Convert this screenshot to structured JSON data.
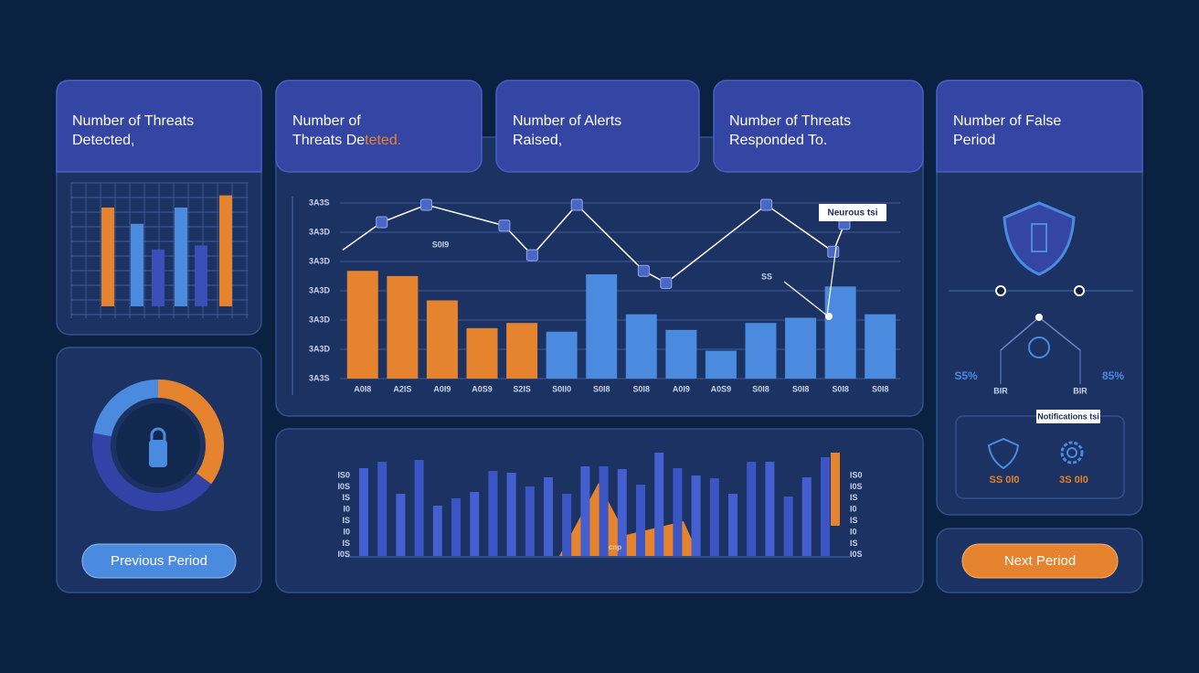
{
  "cards": [
    {
      "lines": [
        "Number of Threats",
        "Detected,"
      ]
    },
    {
      "lines": [
        "Number of",
        "Threats De"
      ],
      "highlight": "teted."
    },
    {
      "lines": [
        "Number of Alerts",
        "Raised,"
      ]
    },
    {
      "lines": [
        "Number of Threats",
        "Responded To."
      ]
    },
    {
      "lines": [
        "Number of False",
        "Period"
      ]
    }
  ],
  "mini_chart": {
    "values": [
      73,
      61,
      42,
      73,
      45,
      82
    ],
    "colors": [
      "#e5832e",
      "#4a8be0",
      "#3c4fb8",
      "#4a8be0",
      "#3c4fb8",
      "#e5832e"
    ]
  },
  "donut": {
    "values": [
      35,
      43,
      22
    ],
    "colors": [
      "#e5832e",
      "#3242a6",
      "#4a8be0"
    ]
  },
  "main_chart": {
    "y_labels": [
      "3A3S",
      "3A3D",
      "3A3D",
      "3A3D",
      "3A3D",
      "3A3D",
      "3A3S"
    ],
    "categories": [
      "A0I8",
      "A2IS",
      "A0I9",
      "A0S9",
      "S2IS",
      "S0II0",
      "S0I8",
      "S0I8",
      "A0I9",
      "A0S9",
      "S0I8",
      "S0I8",
      "S0I8",
      "S0I8"
    ],
    "values": [
      62,
      59,
      45,
      29,
      32,
      27,
      60,
      37,
      28,
      16,
      32,
      35,
      53,
      37
    ],
    "colors": [
      "#e5832e",
      "#e5832e",
      "#e5832e",
      "#e5832e",
      "#e5832e",
      "#4a8be0",
      "#4a8be0",
      "#4a8be0",
      "#4a8be0",
      "#4a8be0",
      "#4a8be0",
      "#4a8be0",
      "#4a8be0",
      "#4a8be0"
    ],
    "line_x": [
      0,
      7,
      15,
      29,
      34,
      42,
      54,
      58,
      76,
      88,
      90
    ],
    "line_values": [
      74,
      90,
      100,
      88,
      71,
      100,
      62,
      55,
      100,
      73,
      89
    ],
    "tooltip": "Neurous tsi",
    "annotations": [
      "S0I9",
      "SS"
    ]
  },
  "bottom_chart": {
    "values": [
      96,
      103,
      68,
      105,
      55,
      63,
      70,
      93,
      91,
      76,
      86,
      68,
      98,
      98,
      95,
      78,
      113,
      96,
      88,
      85,
      68,
      103,
      103,
      65,
      86,
      108
    ],
    "left_labels": [
      "IS0",
      "I0S",
      "IS",
      "I0",
      "IS",
      "I0",
      "IS",
      "I0S"
    ],
    "right_labels": [
      "IS0",
      "I0S",
      "IS",
      "I0",
      "IS",
      "I0",
      "IS",
      "I0S"
    ],
    "note": "cnp"
  },
  "right_panel": {
    "left_pct": "S5%",
    "right_pct": "85%",
    "left_small": "BIR",
    "right_small": "BIR",
    "tooltip": "Notifications tsi",
    "left_value": "SS 0l0",
    "right_value": "3S 0l0"
  },
  "buttons": {
    "previous": "Previous Period",
    "next": "Next Period"
  }
}
